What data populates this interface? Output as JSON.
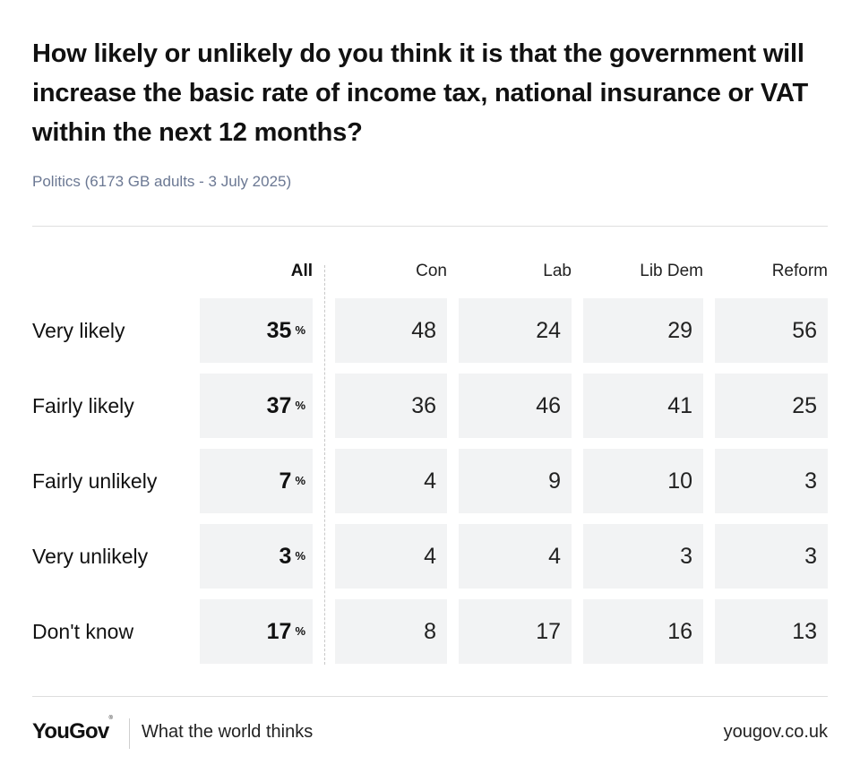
{
  "chart_data": {
    "type": "table",
    "title": "How likely or unlikely do you think it is that the government will increase the basic rate of income tax, national insurance or VAT within the next 12 months?",
    "subtitle": "Politics (6173 GB adults - 3 July 2025)",
    "columns": [
      "All",
      "Con",
      "Lab",
      "Lib Dem",
      "Reform"
    ],
    "percent_sign": "%",
    "rows": [
      {
        "label": "Very likely",
        "values": [
          35,
          48,
          24,
          29,
          56
        ]
      },
      {
        "label": "Fairly likely",
        "values": [
          37,
          36,
          46,
          41,
          25
        ]
      },
      {
        "label": "Fairly unlikely",
        "values": [
          7,
          4,
          9,
          10,
          3
        ]
      },
      {
        "label": "Very unlikely",
        "values": [
          3,
          4,
          4,
          3,
          3
        ]
      },
      {
        "label": "Don't know",
        "values": [
          17,
          8,
          17,
          16,
          13
        ]
      }
    ]
  },
  "footer": {
    "logo": "YouGov",
    "tagline": "What the world thinks",
    "url": "yougov.co.uk"
  },
  "colors": {
    "cell_background": "#f2f3f4",
    "subtitle": "#6b7893"
  }
}
